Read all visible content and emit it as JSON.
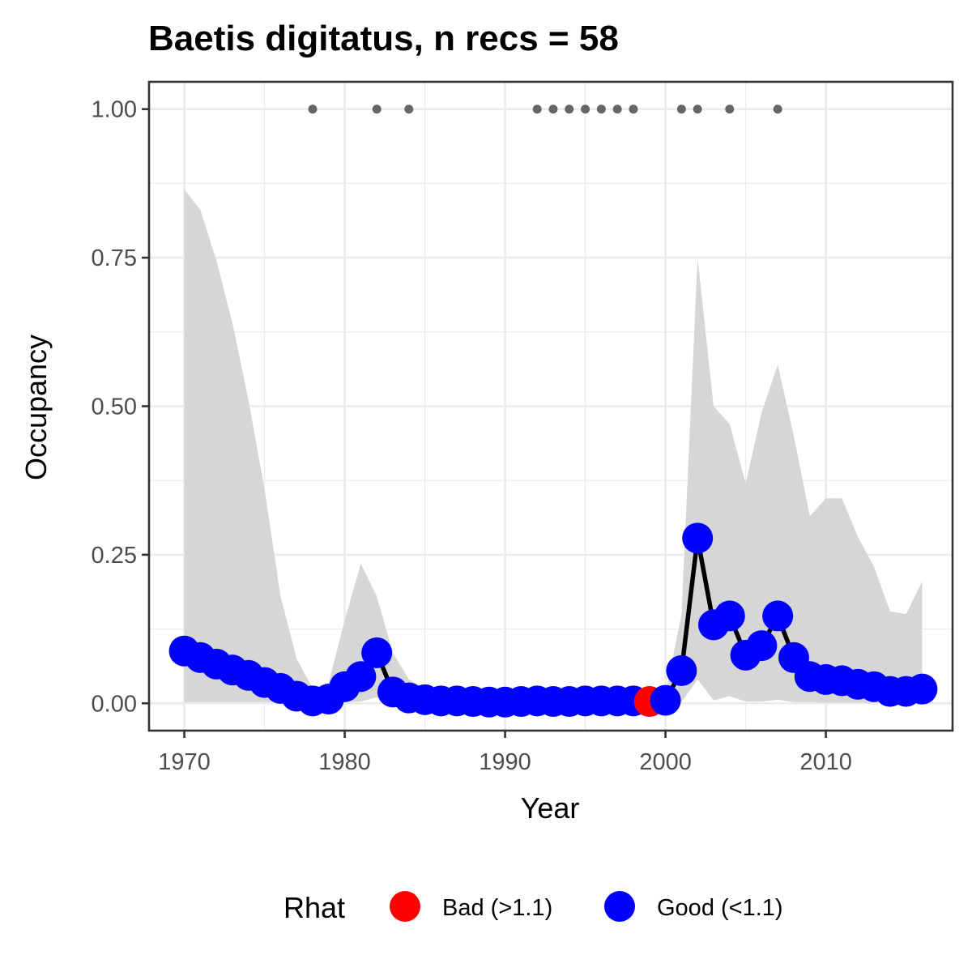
{
  "chart_data": {
    "type": "line",
    "title": "Baetis digitatus, n recs = 58",
    "xlabel": "Year",
    "ylabel": "Occupancy",
    "xlim": [
      1967.8,
      2017.9
    ],
    "ylim": [
      -0.046,
      1.046
    ],
    "x_ticks": [
      1970,
      1980,
      1990,
      2000,
      2010
    ],
    "x_tick_labels": [
      "1970",
      "1980",
      "1990",
      "2000",
      "2010"
    ],
    "y_ticks": [
      0,
      0.25,
      0.5,
      0.75,
      1
    ],
    "y_tick_labels": [
      "0.00",
      "0.25",
      "0.50",
      "0.75",
      "1.00"
    ],
    "grid": true,
    "legend": {
      "title": "Rhat",
      "position": "bottom",
      "entries": [
        {
          "label": "Bad (>1.1)",
          "color": "#ff0000"
        },
        {
          "label": "Good (<1.1)",
          "color": "#0000ff"
        }
      ]
    },
    "colors": {
      "good": "#0000ff",
      "bad": "#ff0000",
      "line": "#000000",
      "ribbon": "#d6d6d6",
      "records": "#666666",
      "grid": "#ebebeb",
      "panel_border": "#333333"
    },
    "series": [
      {
        "x": [
          1970,
          1971,
          1972,
          1973,
          1974,
          1975,
          1976,
          1977,
          1978,
          1979,
          1980,
          1981,
          1982,
          1983,
          1984,
          1985,
          1986,
          1987,
          1988,
          1989,
          1990,
          1991,
          1992,
          1993,
          1994,
          1995,
          1996,
          1997,
          1998,
          1999,
          2000,
          2001,
          2002,
          2003,
          2004,
          2005,
          2006,
          2007,
          2008,
          2009,
          2010,
          2011,
          2012,
          2013,
          2014,
          2015,
          2016
        ],
        "values": [
          0.088,
          0.077,
          0.066,
          0.056,
          0.047,
          0.035,
          0.025,
          0.012,
          0.004,
          0.007,
          0.028,
          0.045,
          0.085,
          0.019,
          0.009,
          0.006,
          0.004,
          0.004,
          0.003,
          0.002,
          0.002,
          0.003,
          0.004,
          0.003,
          0.003,
          0.004,
          0.004,
          0.004,
          0.004,
          0.003,
          0.005,
          0.055,
          0.278,
          0.132,
          0.147,
          0.081,
          0.097,
          0.147,
          0.077,
          0.045,
          0.04,
          0.038,
          0.032,
          0.028,
          0.02,
          0.02,
          0.024
        ],
        "rhat": [
          "good",
          "good",
          "good",
          "good",
          "good",
          "good",
          "good",
          "good",
          "good",
          "good",
          "good",
          "good",
          "good",
          "good",
          "good",
          "good",
          "good",
          "good",
          "good",
          "good",
          "good",
          "good",
          "good",
          "good",
          "good",
          "good",
          "good",
          "good",
          "good",
          "bad",
          "good",
          "good",
          "good",
          "good",
          "good",
          "good",
          "good",
          "good",
          "good",
          "good",
          "good",
          "good",
          "good",
          "good",
          "good",
          "good",
          "good"
        ]
      }
    ],
    "ribbon": {
      "x": [
        1970,
        1971,
        1972,
        1973,
        1974,
        1975,
        1976,
        1977,
        1978,
        1979,
        1980,
        1981,
        1982,
        1983,
        1984,
        1985,
        1986,
        1987,
        1988,
        1989,
        1990,
        1991,
        1992,
        1993,
        1994,
        1995,
        1996,
        1997,
        1998,
        1999,
        2000,
        2001,
        2002,
        2003,
        2004,
        2005,
        2006,
        2007,
        2008,
        2009,
        2010,
        2011,
        2012,
        2013,
        2014,
        2015,
        2016
      ],
      "upper": [
        0.865,
        0.83,
        0.745,
        0.64,
        0.51,
        0.36,
        0.18,
        0.075,
        0.025,
        0.035,
        0.14,
        0.235,
        0.18,
        0.085,
        0.04,
        0.025,
        0.02,
        0.018,
        0.016,
        0.015,
        0.015,
        0.015,
        0.016,
        0.016,
        0.016,
        0.016,
        0.016,
        0.016,
        0.016,
        0.016,
        0.016,
        0.15,
        0.75,
        0.5,
        0.47,
        0.37,
        0.49,
        0.57,
        0.45,
        0.315,
        0.345,
        0.345,
        0.28,
        0.23,
        0.155,
        0.15,
        0.205
      ],
      "lower": [
        0.002,
        0.002,
        0.002,
        0.002,
        0.002,
        0.002,
        0.002,
        0.002,
        0.002,
        0.002,
        0.002,
        0.003,
        0.01,
        0.002,
        0.001,
        0.001,
        0.001,
        0.001,
        0.001,
        0.001,
        0.001,
        0.001,
        0.001,
        0.001,
        0.001,
        0.001,
        0.001,
        0.001,
        0.001,
        0.001,
        0.001,
        0.002,
        0.04,
        0.005,
        0.012,
        0.003,
        0.003,
        0.006,
        0.002,
        0.002,
        0.001,
        0.001,
        0.001,
        0.001,
        0.001,
        0.001,
        0.001
      ]
    },
    "records": {
      "x": [
        1978,
        1982,
        1984,
        1992,
        1993,
        1994,
        1995,
        1996,
        1997,
        1998,
        2001,
        2002,
        2004,
        2007
      ],
      "y": 1.0
    }
  }
}
